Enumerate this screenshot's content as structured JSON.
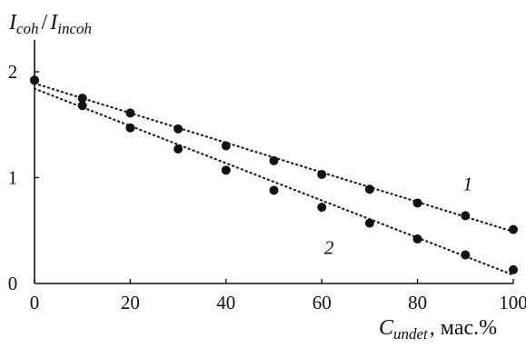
{
  "chart_data": {
    "type": "scatter",
    "title": "",
    "ylabel": {
      "main": "I",
      "sub1": "coh",
      "sep": "/",
      "main2": "I",
      "sub2": "incoh"
    },
    "xlabel": {
      "main": "C",
      "sub": "undet",
      "suffix": ", мас.%"
    },
    "xlim": [
      0,
      100
    ],
    "ylim": [
      0,
      2.3
    ],
    "x_ticks": [
      0,
      20,
      40,
      60,
      80,
      100
    ],
    "y_ticks": [
      0,
      1,
      2
    ],
    "grid": false,
    "legend": "none",
    "series": [
      {
        "name": "1",
        "x": [
          0,
          10,
          20,
          30,
          40,
          50,
          60,
          70,
          80,
          90,
          100
        ],
        "y": [
          1.92,
          1.75,
          1.61,
          1.46,
          1.3,
          1.16,
          1.03,
          0.89,
          0.76,
          0.64,
          0.51
        ],
        "fit": {
          "x": [
            0,
            100
          ],
          "y": [
            1.89,
            0.49
          ]
        }
      },
      {
        "name": "2",
        "x": [
          0,
          10,
          20,
          30,
          40,
          50,
          60,
          70,
          80,
          90,
          100
        ],
        "y": [
          1.92,
          1.68,
          1.47,
          1.27,
          1.07,
          0.88,
          0.72,
          0.57,
          0.42,
          0.27,
          0.13
        ],
        "fit": {
          "x": [
            0,
            100
          ],
          "y": [
            1.84,
            0.08
          ]
        }
      }
    ],
    "series_labels": [
      {
        "text": "1",
        "x": 90.5,
        "y": 0.88
      },
      {
        "text": "2",
        "x": 61.5,
        "y": 0.28
      }
    ]
  }
}
